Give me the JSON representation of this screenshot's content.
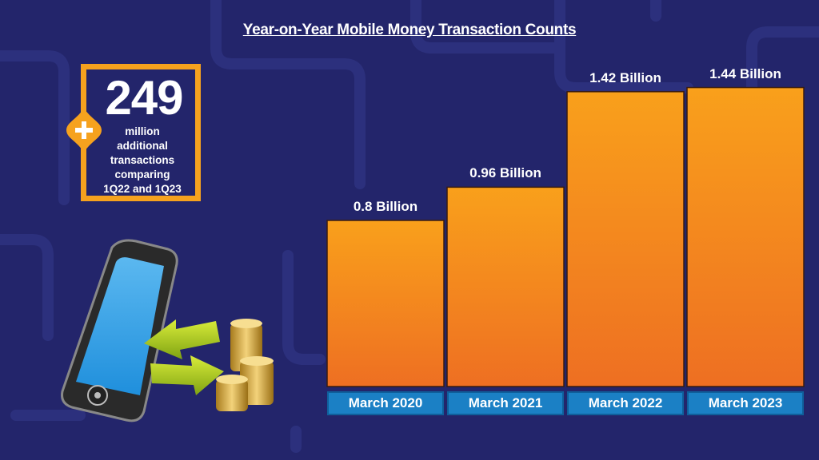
{
  "title": "Year-on-Year Mobile Money Transaction Counts",
  "callout": {
    "number": "249",
    "line1": "million",
    "line2": "additional",
    "line3": "transactions",
    "line4": "comparing",
    "line5": "1Q22 and 1Q23",
    "plus_icon": "plus-icon",
    "accent_color": "#f6a21e"
  },
  "colors": {
    "background": "#23256b",
    "bar_top": "#f9a01b",
    "bar_bottom": "#ee6f22",
    "category_bg": "#1b80c5"
  },
  "chart_data": {
    "type": "bar",
    "title": "Year-on-Year Mobile Money Transaction Counts",
    "categories": [
      "March 2020",
      "March 2021",
      "March 2022",
      "March 2023"
    ],
    "values": [
      0.8,
      0.96,
      1.42,
      1.44
    ],
    "value_labels": [
      "0.8 Billion",
      "0.96 Billion",
      "1.42 Billion",
      "1.44 Billion"
    ],
    "unit": "Billion",
    "xlabel": "",
    "ylabel": "",
    "ylim": [
      0,
      1.6
    ],
    "grid": false,
    "legend": "none"
  }
}
